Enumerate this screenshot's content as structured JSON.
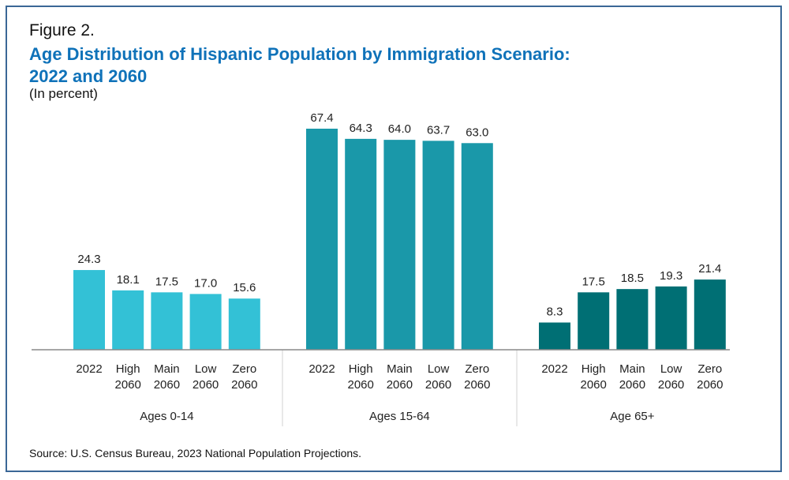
{
  "figure_label": "Figure 2.",
  "title_line1": "Age Distribution of Hispanic Population by Immigration Scenario:",
  "title_line2": "2022 and 2060",
  "unit": "(In percent)",
  "source": "Source: U.S. Census Bureau, 2023 National Population Projections.",
  "chart_data": {
    "type": "bar",
    "title": "Age Distribution of Hispanic Population by Immigration Scenario: 2022 and 2060",
    "ylabel": "Percent",
    "ylim": [
      0,
      70
    ],
    "grid": false,
    "bar_labels": [
      [
        "2022"
      ],
      [
        "High",
        "2060"
      ],
      [
        "Main",
        "2060"
      ],
      [
        "Low",
        "2060"
      ],
      [
        "Zero",
        "2060"
      ]
    ],
    "groups": [
      {
        "name": "Ages 0-14",
        "color": "#33c1d6",
        "values": [
          24.3,
          18.1,
          17.5,
          17.0,
          15.6
        ]
      },
      {
        "name": "Ages 15-64",
        "color": "#1a98a9",
        "values": [
          67.4,
          64.3,
          64.0,
          63.7,
          63.0
        ]
      },
      {
        "name": "Age 65+",
        "color": "#006f74",
        "values": [
          8.3,
          17.5,
          18.5,
          19.3,
          21.4
        ]
      }
    ]
  }
}
